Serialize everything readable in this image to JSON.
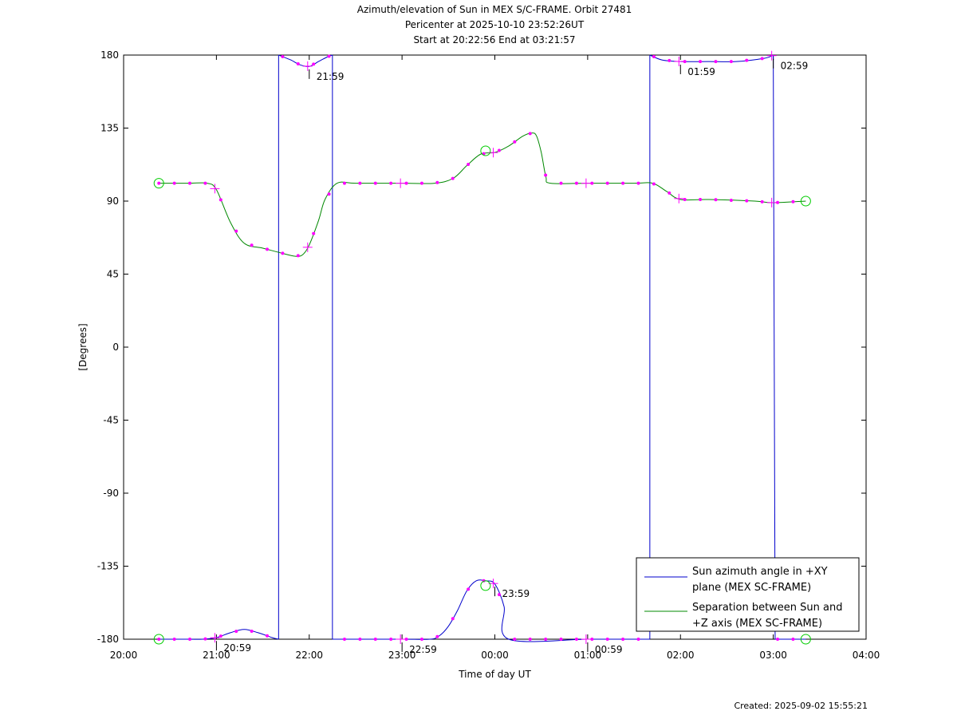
{
  "title": {
    "line1": "Azimuth/elevation of Sun in MEX S/C-FRAME.  Orbit 27481",
    "line2": "Pericenter at 2025-10-10 23:52:26UT",
    "line3": "Start at 20:22:56 End at 03:21:57"
  },
  "created": "Created: 2025-09-02 15:55:21",
  "chart_data": {
    "type": "line",
    "xlabel": "Time of day UT",
    "ylabel": "[Degrees]",
    "x_unit": "hours since 20:00 UT",
    "xlim": [
      0,
      8
    ],
    "ylim": [
      -180,
      180
    ],
    "x_tick_labels": [
      "20:00",
      "21:00",
      "22:00",
      "23:00",
      "00:00",
      "01:00",
      "02:00",
      "03:00",
      "04:00"
    ],
    "y_ticks": [
      180,
      135,
      90,
      45,
      0,
      -45,
      -90,
      -135,
      -180
    ],
    "grid": false,
    "legend_position": "bottom-right",
    "series": [
      {
        "name": "Sun azimuth angle in +XY plane (MEX SC-FRAME)",
        "color": "#0000cc",
        "segments": [
          [
            [
              0.38,
              -180
            ],
            [
              0.7,
              -180
            ],
            [
              0.85,
              -180
            ],
            [
              1.0,
              -179
            ],
            [
              1.15,
              -176
            ],
            [
              1.3,
              -174
            ],
            [
              1.45,
              -176
            ],
            [
              1.6,
              -179
            ],
            [
              1.67,
              -180
            ]
          ],
          [
            [
              1.67,
              180
            ],
            [
              1.8,
              177
            ],
            [
              1.9,
              174
            ],
            [
              2.0,
              173
            ],
            [
              2.1,
              176
            ],
            [
              2.2,
              179
            ],
            [
              2.25,
              180
            ]
          ],
          [
            [
              2.25,
              -180
            ],
            [
              2.5,
              -180
            ],
            [
              3.0,
              -180
            ],
            [
              3.3,
              -180
            ],
            [
              3.4,
              -178
            ],
            [
              3.5,
              -172
            ],
            [
              3.6,
              -162
            ],
            [
              3.7,
              -150
            ],
            [
              3.8,
              -144
            ],
            [
              3.9,
              -144
            ],
            [
              4.0,
              -146
            ],
            [
              4.1,
              -160
            ],
            [
              4.15,
              -180
            ],
            [
              5.0,
              -180
            ],
            [
              5.5,
              -180
            ],
            [
              5.67,
              -180
            ]
          ],
          [
            [
              5.67,
              180
            ],
            [
              5.8,
              177
            ],
            [
              6.0,
              176
            ],
            [
              6.3,
              176
            ],
            [
              6.6,
              176
            ],
            [
              6.9,
              178
            ],
            [
              7.0,
              180
            ]
          ],
          [
            [
              7.02,
              -180
            ],
            [
              7.2,
              -180
            ],
            [
              7.35,
              -180
            ]
          ]
        ],
        "labelled_points": [
          {
            "x": 0.983,
            "label": "20:59"
          },
          {
            "x": 1.983,
            "label": "21:59"
          },
          {
            "x": 2.983,
            "label": "22:59"
          },
          {
            "x": 3.983,
            "label": "23:59"
          },
          {
            "x": 4.983,
            "label": "00:59"
          },
          {
            "x": 5.983,
            "label": "01:59"
          },
          {
            "x": 6.983,
            "label": "02:59"
          }
        ]
      },
      {
        "name": "Separation between Sun and +Z axis (MEX SC-FRAME)",
        "color": "#008800",
        "points": [
          [
            0.38,
            101
          ],
          [
            0.7,
            101
          ],
          [
            0.9,
            101
          ],
          [
            1.0,
            97
          ],
          [
            1.15,
            77
          ],
          [
            1.3,
            64
          ],
          [
            1.5,
            61
          ],
          [
            1.7,
            58
          ],
          [
            1.85,
            56
          ],
          [
            1.93,
            57
          ],
          [
            2.0,
            63
          ],
          [
            2.1,
            78
          ],
          [
            2.17,
            91
          ],
          [
            2.3,
            101
          ],
          [
            2.5,
            101
          ],
          [
            3.0,
            101
          ],
          [
            3.35,
            101
          ],
          [
            3.55,
            104
          ],
          [
            3.7,
            112
          ],
          [
            3.85,
            119
          ],
          [
            4.0,
            120
          ],
          [
            4.15,
            124
          ],
          [
            4.3,
            130
          ],
          [
            4.4,
            132
          ],
          [
            4.45,
            130
          ],
          [
            4.5,
            120
          ],
          [
            4.55,
            105
          ],
          [
            4.6,
            101
          ],
          [
            5.0,
            101
          ],
          [
            5.5,
            101
          ],
          [
            5.7,
            101
          ],
          [
            5.85,
            96
          ],
          [
            6.0,
            91
          ],
          [
            6.3,
            91
          ],
          [
            6.8,
            90
          ],
          [
            7.0,
            89
          ],
          [
            7.35,
            90
          ]
        ]
      }
    ],
    "markers": {
      "circle_points": [
        [
          0.38,
          101
        ],
        [
          0.38,
          -180
        ],
        [
          3.9,
          121
        ],
        [
          3.9,
          -147
        ],
        [
          7.35,
          90
        ],
        [
          7.35,
          -180
        ]
      ],
      "color": "#00cc00"
    }
  },
  "legend": {
    "azimuth": {
      "line1": "Sun azimuth angle in +XY",
      "line2": "plane (MEX SC-FRAME)"
    },
    "separation": {
      "line1": "Separation between Sun and",
      "line2": "+Z axis (MEX SC-FRAME)"
    }
  }
}
